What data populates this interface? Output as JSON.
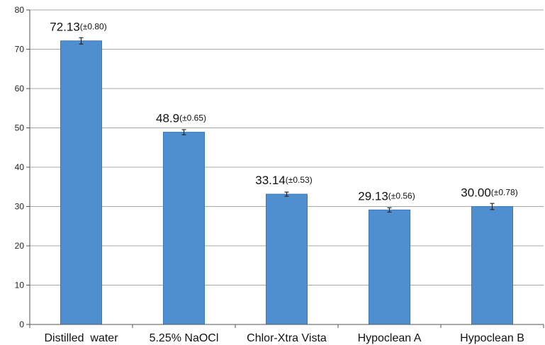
{
  "chart_data": {
    "type": "bar",
    "categories": [
      "Distilled  water",
      "5.25% NaOCl",
      "Chlor-Xtra Vista",
      "Hypoclean A",
      "Hypoclean B"
    ],
    "values": [
      72.13,
      48.9,
      33.14,
      29.13,
      30.0
    ],
    "errors": [
      0.8,
      0.65,
      0.53,
      0.56,
      0.78
    ],
    "value_labels": [
      "72.13",
      "48.9",
      "33.14",
      "29.13",
      "30.00"
    ],
    "error_labels": [
      "(±0.80)",
      "(±0.65)",
      "(±0.53)",
      "(±0.56)",
      "(±0.78)"
    ],
    "yticks": [
      "0",
      "10",
      "20",
      "30",
      "40",
      "50",
      "60",
      "70",
      "80"
    ],
    "ylim": [
      0,
      80
    ],
    "grid": true,
    "bar_color": "#4f8fd0",
    "bar_edge_color": "#3b78b8",
    "grid_color": "#a8a8a8"
  }
}
